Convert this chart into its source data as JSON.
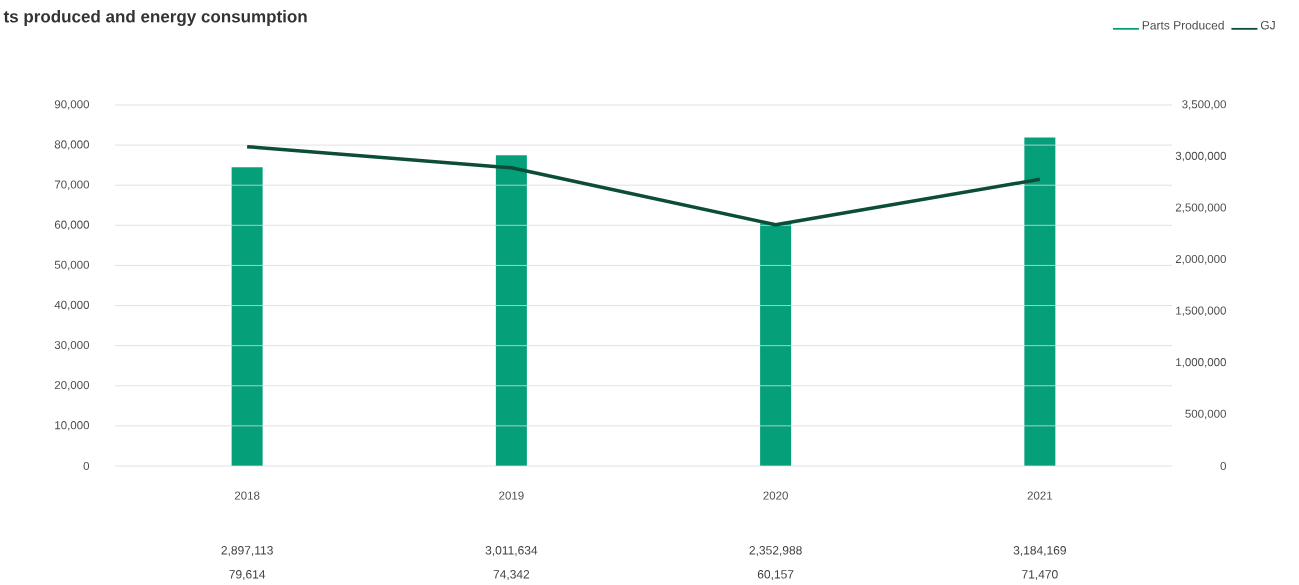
{
  "chart_data": {
    "type": "bar",
    "title": "ts produced and energy consumption",
    "categories": [
      "2018",
      "2019",
      "2020",
      "2021"
    ],
    "series": [
      {
        "name": "Parts Produced",
        "axis": "y2",
        "color": "#05a07a",
        "values": [
          2897113,
          3011634,
          2352988,
          3184169
        ],
        "value_labels": [
          "2,897,113",
          "3,011,634",
          "2,352,988",
          "3,184,169"
        ]
      },
      {
        "name": "GJ",
        "type": "line",
        "color": "#0b4d3a",
        "values": [
          79614,
          74342,
          60157,
          71470
        ],
        "value_labels": [
          "79,614",
          "74,342",
          "60,157",
          "71,470"
        ]
      }
    ],
    "ylim": [
      0,
      90000
    ],
    "yticks": [
      0,
      {
        "value": 10000,
        "label": "10,000"
      },
      {
        "value": 20000,
        "label": "20,000"
      },
      {
        "value": 30000,
        "label": "30,000"
      },
      {
        "value": 40000,
        "label": "40,000"
      },
      {
        "value": 50000,
        "label": "50,000"
      },
      {
        "value": 60000,
        "label": "60,000"
      },
      {
        "value": 70000,
        "label": "70,000"
      },
      {
        "value": 80000,
        "label": "80,000"
      },
      {
        "value": 90000,
        "label": "90,000"
      }
    ],
    "y2lim": [
      0,
      3500000
    ],
    "y2ticks": [
      0,
      {
        "value": 500000,
        "label": "500,000"
      },
      {
        "value": 1000000,
        "label": "1,000,000"
      },
      {
        "value": 1500000,
        "label": "1,500,000"
      },
      {
        "value": 2000000,
        "label": "2,000,000"
      },
      {
        "value": 2500000,
        "label": "2,500,000"
      },
      {
        "value": 3000000,
        "label": "3,000,000"
      },
      {
        "value": 3500000,
        "label": "3,500,00"
      }
    ],
    "grid": "y",
    "legend": "top right",
    "marker": "none",
    "line_style": "solid"
  }
}
